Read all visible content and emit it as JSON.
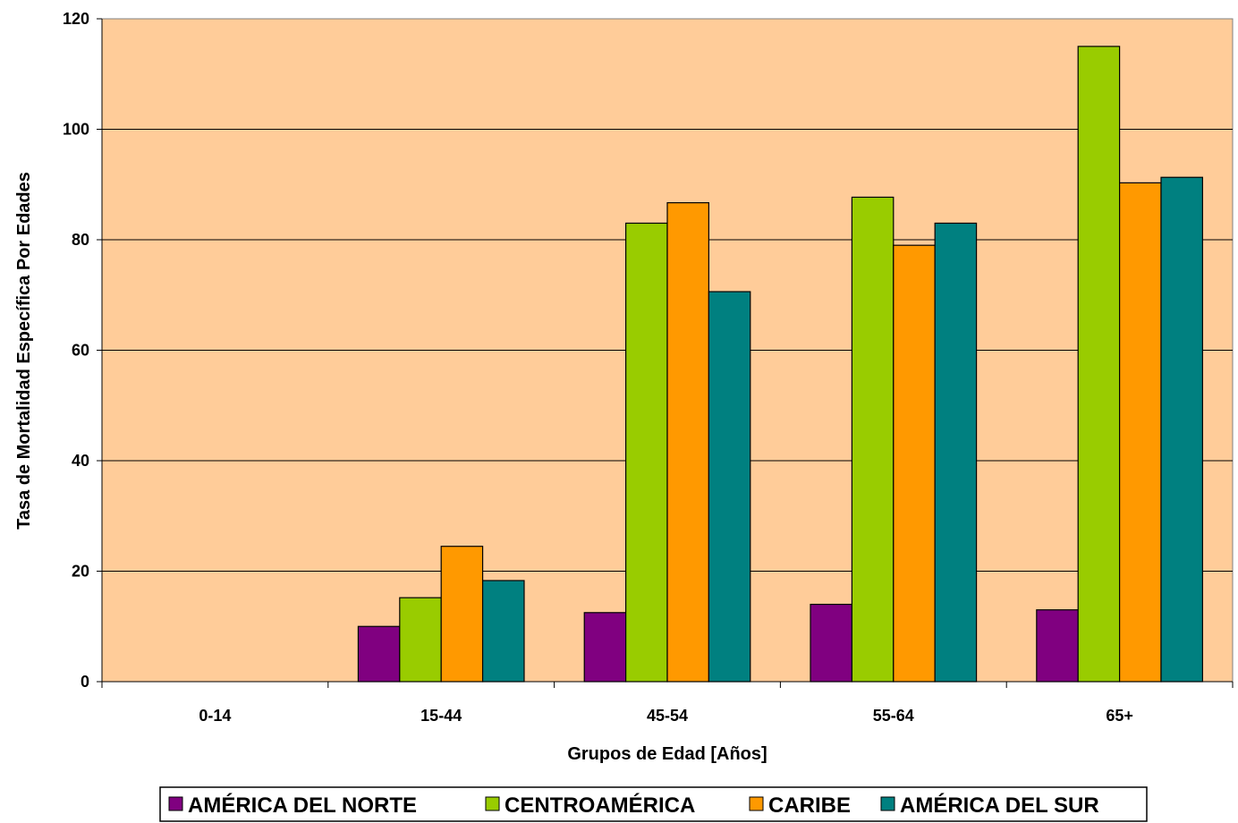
{
  "chart_data": {
    "type": "bar",
    "xlabel": "Grupos de Edad [Años]",
    "ylabel": "Tasa de Mortalidad Específica Por Edades",
    "ylim": [
      0,
      120
    ],
    "yticks": [
      0,
      20,
      40,
      60,
      80,
      100,
      120
    ],
    "categories": [
      "0-14",
      "15-44",
      "45-54",
      "55-64",
      "65+"
    ],
    "series": [
      {
        "name": "AMÉRICA DEL NORTE",
        "color": "#800080",
        "values": [
          0,
          10,
          12.5,
          14,
          13
        ]
      },
      {
        "name": "CENTROAMÉRICA",
        "color": "#99CC00",
        "values": [
          0,
          15.2,
          83,
          87.7,
          115
        ]
      },
      {
        "name": "CARIBE",
        "color": "#FF9900",
        "values": [
          0,
          24.5,
          86.7,
          79,
          90.3
        ]
      },
      {
        "name": "AMÉRICA DEL SUR",
        "color": "#008080",
        "values": [
          0,
          18.3,
          70.6,
          83,
          91.3
        ]
      }
    ],
    "plot_background": "#FFCC99",
    "grid": true,
    "legend_position": "bottom"
  }
}
